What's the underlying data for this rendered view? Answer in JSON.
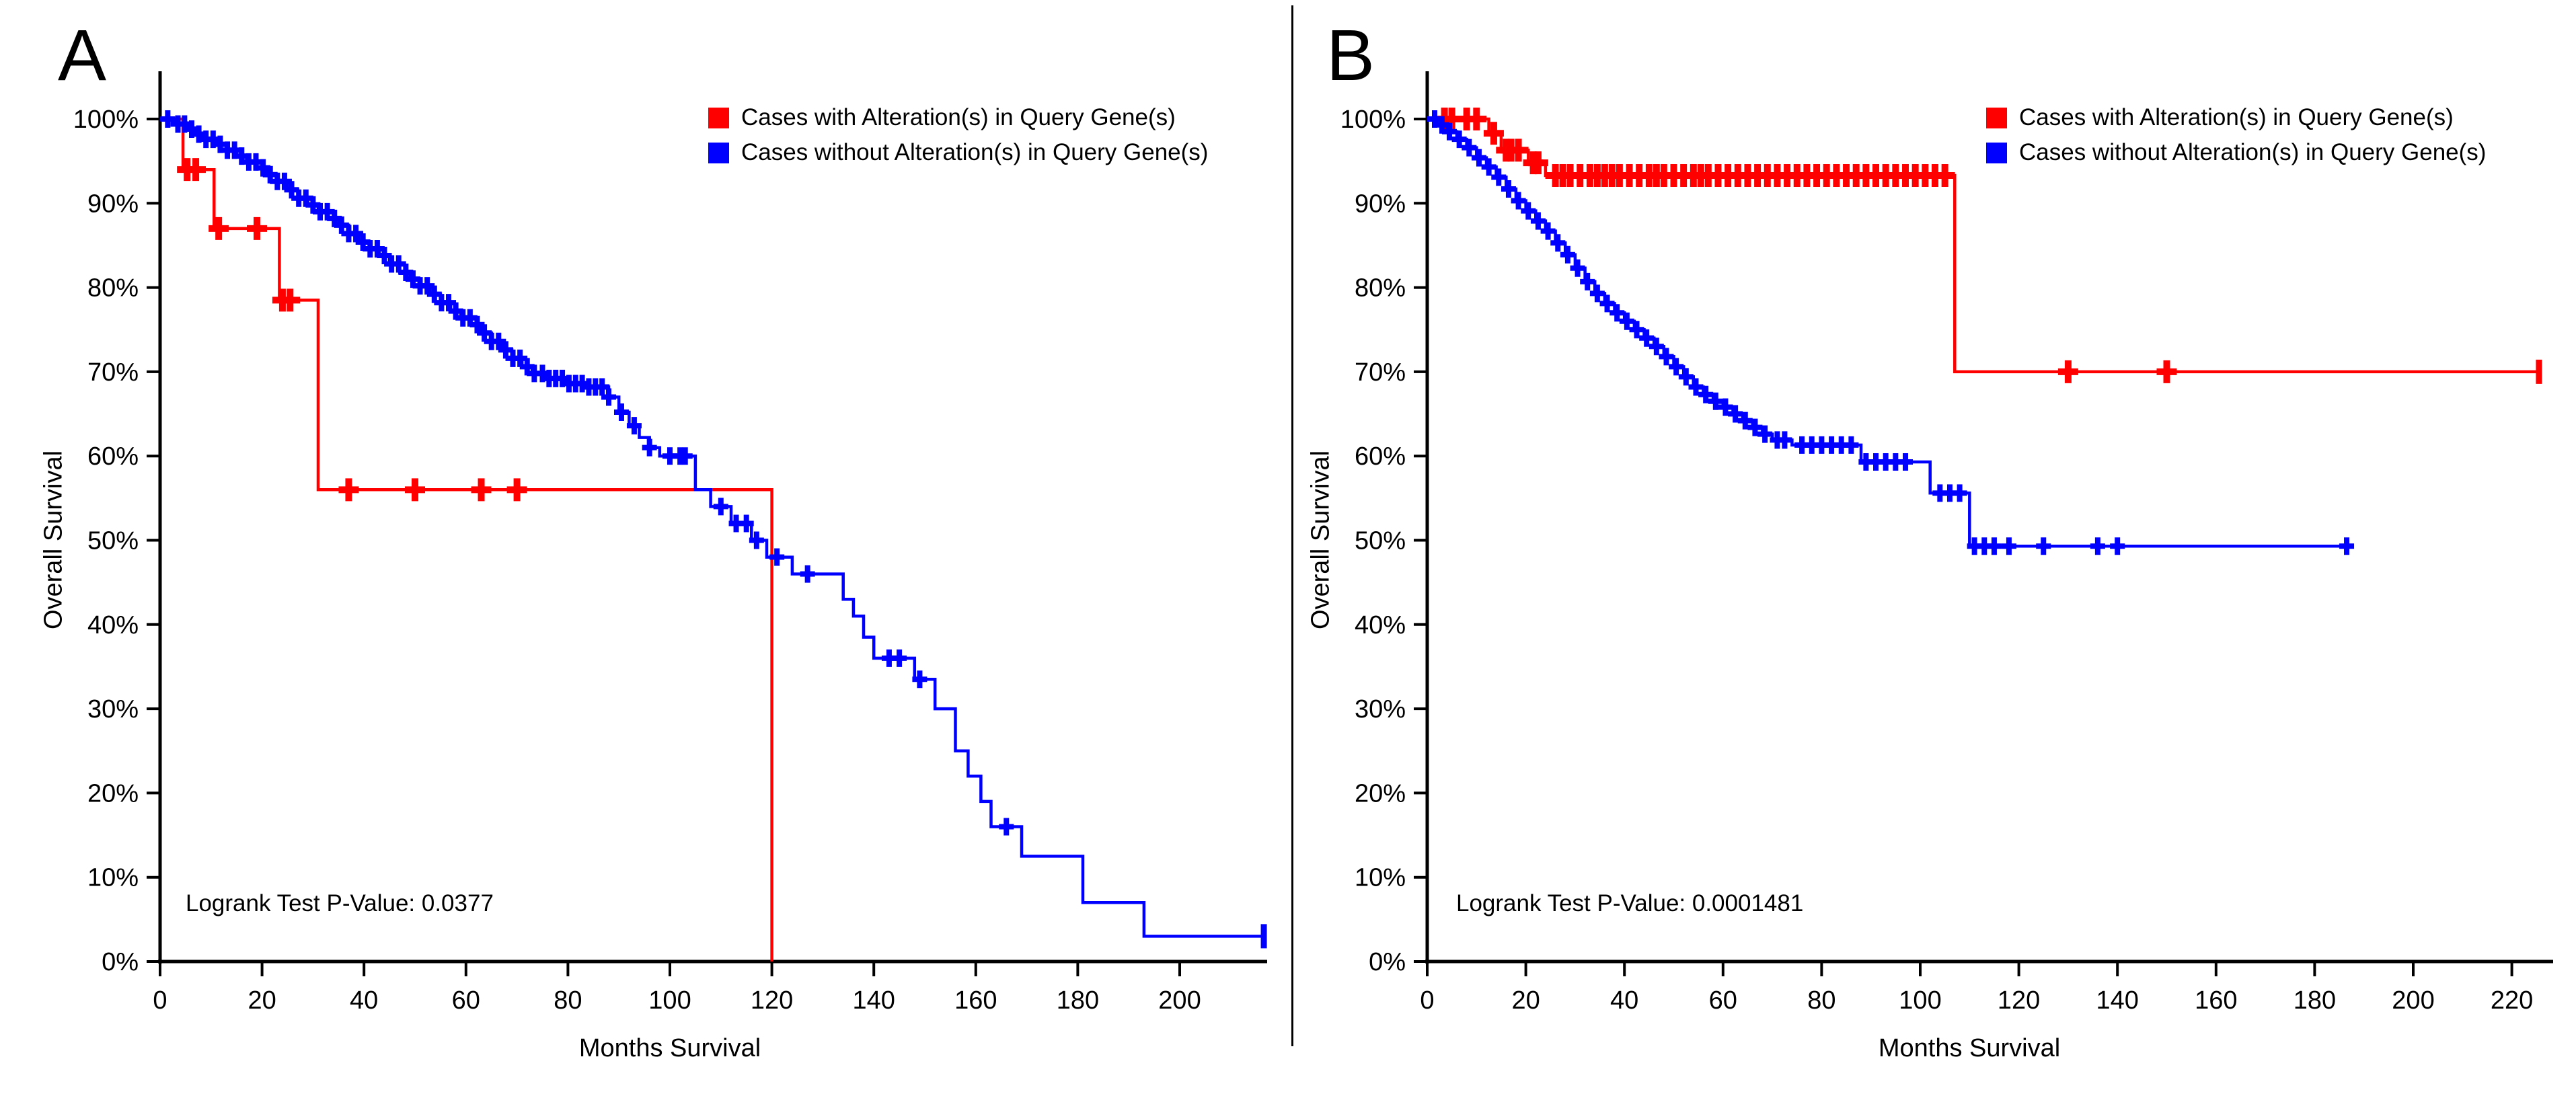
{
  "panels": [
    {
      "letter": "A",
      "y_axis_title": "Overall Survival",
      "x_axis_title": "Months Survival",
      "pvalue_text": "Logrank Test P-Value: 0.0377",
      "legend": [
        {
          "label": "Cases with Alteration(s) in Query Gene(s)",
          "color": "#ff0000"
        },
        {
          "label": "Cases without Alteration(s) in Query Gene(s)",
          "color": "#0000ff"
        }
      ]
    },
    {
      "letter": "B",
      "y_axis_title": "Overall Survival",
      "x_axis_title": "Months Survival",
      "pvalue_text": "Logrank Test P-Value: 0.0001481",
      "legend": [
        {
          "label": "Cases with Alteration(s) in Query Gene(s)",
          "color": "#ff0000"
        },
        {
          "label": "Cases without Alteration(s) in Query Gene(s)",
          "color": "#0000ff"
        }
      ]
    }
  ],
  "chart_data": [
    {
      "type": "line",
      "subtype": "kaplan-meier",
      "panel": "A",
      "xlabel": "Months Survival",
      "ylabel": "Overall Survival",
      "xlim": [
        0,
        217
      ],
      "ylim": [
        0,
        100
      ],
      "x_ticks": [
        0,
        20,
        40,
        60,
        80,
        100,
        120,
        140,
        160,
        180,
        200
      ],
      "y_ticks": [
        0,
        10,
        20,
        30,
        40,
        50,
        60,
        70,
        80,
        90,
        100
      ],
      "logrank_p": 0.0377,
      "series": [
        {
          "name": "Cases with Alteration(s) in Query Gene(s)",
          "color": "#ff0000",
          "steps": [
            [
              4.5,
              94
            ],
            [
              10.6,
              87
            ],
            [
              23.4,
              78.5
            ],
            [
              31,
              56
            ],
            [
              120,
              0
            ]
          ],
          "censors": [
            5.3,
            7,
            11.5,
            19,
            24,
            25.5,
            37,
            50,
            63,
            70
          ],
          "end_time": 120,
          "end_marker": "none"
        },
        {
          "name": "Cases without Alteration(s) in Query Gene(s)",
          "color": "#0000ff",
          "steps": [
            [
              3,
              99.4
            ],
            [
              5,
              98.8
            ],
            [
              7,
              98.2
            ],
            [
              9,
              97.6
            ],
            [
              11,
              97
            ],
            [
              13,
              96.3
            ],
            [
              15,
              95.6
            ],
            [
              17,
              94.9
            ],
            [
              19,
              94.2
            ],
            [
              21,
              93.4
            ],
            [
              23,
              92.6
            ],
            [
              25,
              91.6
            ],
            [
              27,
              90.6
            ],
            [
              29,
              89.8
            ],
            [
              31,
              89
            ],
            [
              33,
              88.2
            ],
            [
              35,
              87.4
            ],
            [
              37,
              86.4
            ],
            [
              39,
              85.4
            ],
            [
              41,
              84.6
            ],
            [
              43,
              83.8
            ],
            [
              45,
              82.8
            ],
            [
              47,
              81.8
            ],
            [
              49,
              81
            ],
            [
              51,
              80.2
            ],
            [
              53,
              79.2
            ],
            [
              55,
              78.2
            ],
            [
              57,
              77.2
            ],
            [
              59,
              76.4
            ],
            [
              61,
              75.6
            ],
            [
              63,
              74.6
            ],
            [
              65,
              73.6
            ],
            [
              67,
              72.6
            ],
            [
              69,
              71.6
            ],
            [
              71,
              70.6
            ],
            [
              73,
              69.8
            ],
            [
              76,
              69.2
            ],
            [
              80,
              68.6
            ],
            [
              84,
              68.2
            ],
            [
              88,
              67
            ],
            [
              90,
              65.2
            ],
            [
              92,
              63.6
            ],
            [
              94,
              62.2
            ],
            [
              96,
              61
            ],
            [
              98,
              60
            ],
            [
              105,
              56
            ],
            [
              108,
              54
            ],
            [
              112,
              52
            ],
            [
              116,
              50
            ],
            [
              119,
              48
            ],
            [
              124,
              46
            ],
            [
              134,
              43
            ],
            [
              136,
              41
            ],
            [
              138,
              38.5
            ],
            [
              140,
              36
            ],
            [
              148,
              33.5
            ],
            [
              152,
              30
            ],
            [
              156,
              25
            ],
            [
              158.5,
              22
            ],
            [
              161,
              19
            ],
            [
              163,
              16
            ],
            [
              169,
              12.5
            ],
            [
              181,
              7
            ],
            [
              193,
              3
            ]
          ],
          "censors": [
            1.5,
            3.5,
            4.8,
            6.2,
            7.6,
            9,
            10.4,
            11.8,
            13.2,
            14.6,
            16,
            17.4,
            18.8,
            20.2,
            21.6,
            23,
            24.4,
            25.8,
            27.2,
            28.6,
            30,
            31.4,
            32.8,
            34.2,
            35.6,
            37,
            38.4,
            39.8,
            41.2,
            42.6,
            44,
            45.4,
            46.8,
            48.2,
            49.6,
            51,
            52.4,
            53.8,
            55.2,
            56.6,
            58,
            59.4,
            60.8,
            62.2,
            63.6,
            65,
            66.4,
            67.8,
            69.2,
            70.6,
            72,
            73.4,
            75,
            76.3,
            77.6,
            78.9,
            80.2,
            81.5,
            82.8,
            84.1,
            85.4,
            86.7,
            88,
            90.5,
            93,
            96,
            100,
            102,
            103,
            110,
            113,
            115,
            117,
            121,
            127,
            143,
            145,
            149,
            166
          ],
          "end_time": 216.5,
          "end_marker": "tick"
        }
      ]
    },
    {
      "type": "line",
      "subtype": "kaplan-meier",
      "panel": "B",
      "xlabel": "Months Survival",
      "ylabel": "Overall Survival",
      "xlim": [
        0,
        226
      ],
      "ylim": [
        0,
        100
      ],
      "x_ticks": [
        0,
        20,
        40,
        60,
        80,
        100,
        120,
        140,
        160,
        180,
        200,
        220
      ],
      "y_ticks": [
        0,
        10,
        20,
        30,
        40,
        50,
        60,
        70,
        80,
        90,
        100
      ],
      "logrank_p": 0.0001481,
      "series": [
        {
          "name": "Cases with Alteration(s) in Query Gene(s)",
          "color": "#ff0000",
          "steps": [
            [
              12.5,
              98.3
            ],
            [
              15,
              96.3
            ],
            [
              20.5,
              94.8
            ],
            [
              24,
              93.3
            ],
            [
              107,
              70
            ]
          ],
          "censors": [
            3.5,
            5,
            8,
            10,
            13.5,
            16,
            17,
            18.5,
            21.5,
            22.5,
            26,
            27.5,
            29,
            31,
            33,
            34.5,
            36,
            37.5,
            39,
            41,
            43,
            45,
            46.5,
            48,
            50,
            52,
            54,
            55.5,
            57,
            59,
            61,
            63,
            65,
            67,
            69,
            71,
            73,
            75,
            77,
            79,
            81,
            83,
            85,
            87,
            89,
            91,
            93,
            95,
            97,
            99,
            101,
            103,
            105,
            130,
            150
          ],
          "end_time": 225.5,
          "end_marker": "tick"
        },
        {
          "name": "Cases without Alteration(s) in Query Gene(s)",
          "color": "#0000ff",
          "steps": [
            [
              2,
              99.3
            ],
            [
              4,
              98.5
            ],
            [
              6,
              97.6
            ],
            [
              8,
              96.6
            ],
            [
              10,
              95.4
            ],
            [
              12,
              94.3
            ],
            [
              14,
              93.1
            ],
            [
              16,
              91.7
            ],
            [
              18,
              90.3
            ],
            [
              20,
              89.1
            ],
            [
              22,
              87.9
            ],
            [
              24,
              86.7
            ],
            [
              26,
              85.3
            ],
            [
              28,
              83.9
            ],
            [
              30,
              82.3
            ],
            [
              32,
              80.7
            ],
            [
              34,
              79.3
            ],
            [
              36,
              78.1
            ],
            [
              38,
              77
            ],
            [
              40,
              76
            ],
            [
              42,
              75
            ],
            [
              44,
              74
            ],
            [
              46,
              73
            ],
            [
              48,
              71.8
            ],
            [
              50,
              70.6
            ],
            [
              52,
              69.4
            ],
            [
              54,
              68.2
            ],
            [
              56,
              67.3
            ],
            [
              58,
              66.5
            ],
            [
              60,
              65.8
            ],
            [
              62,
              65
            ],
            [
              64,
              64.2
            ],
            [
              66,
              63.4
            ],
            [
              68,
              62.6
            ],
            [
              70,
              61.9
            ],
            [
              74,
              61.3
            ],
            [
              88,
              59.3
            ],
            [
              102,
              55.6
            ],
            [
              110,
              49.3
            ]
          ],
          "censors": [
            1.5,
            3,
            4.5,
            6.5,
            8.5,
            10.5,
            12.5,
            14.5,
            16.5,
            18.5,
            20.5,
            22.5,
            24.5,
            26.5,
            28.5,
            30.5,
            32.5,
            34.5,
            36.5,
            38.5,
            40.5,
            42.5,
            44.5,
            46.5,
            48.5,
            50.5,
            52.5,
            54.5,
            56.5,
            58.5,
            60.5,
            62.5,
            64.5,
            66.5,
            68.5,
            71,
            72.5,
            76,
            78,
            80,
            82,
            84,
            86,
            89,
            91,
            93,
            95,
            97,
            104,
            106,
            108,
            111,
            113,
            115,
            118,
            125,
            136,
            140
          ],
          "end_time": 186.5,
          "end_marker": "plus"
        }
      ]
    }
  ]
}
